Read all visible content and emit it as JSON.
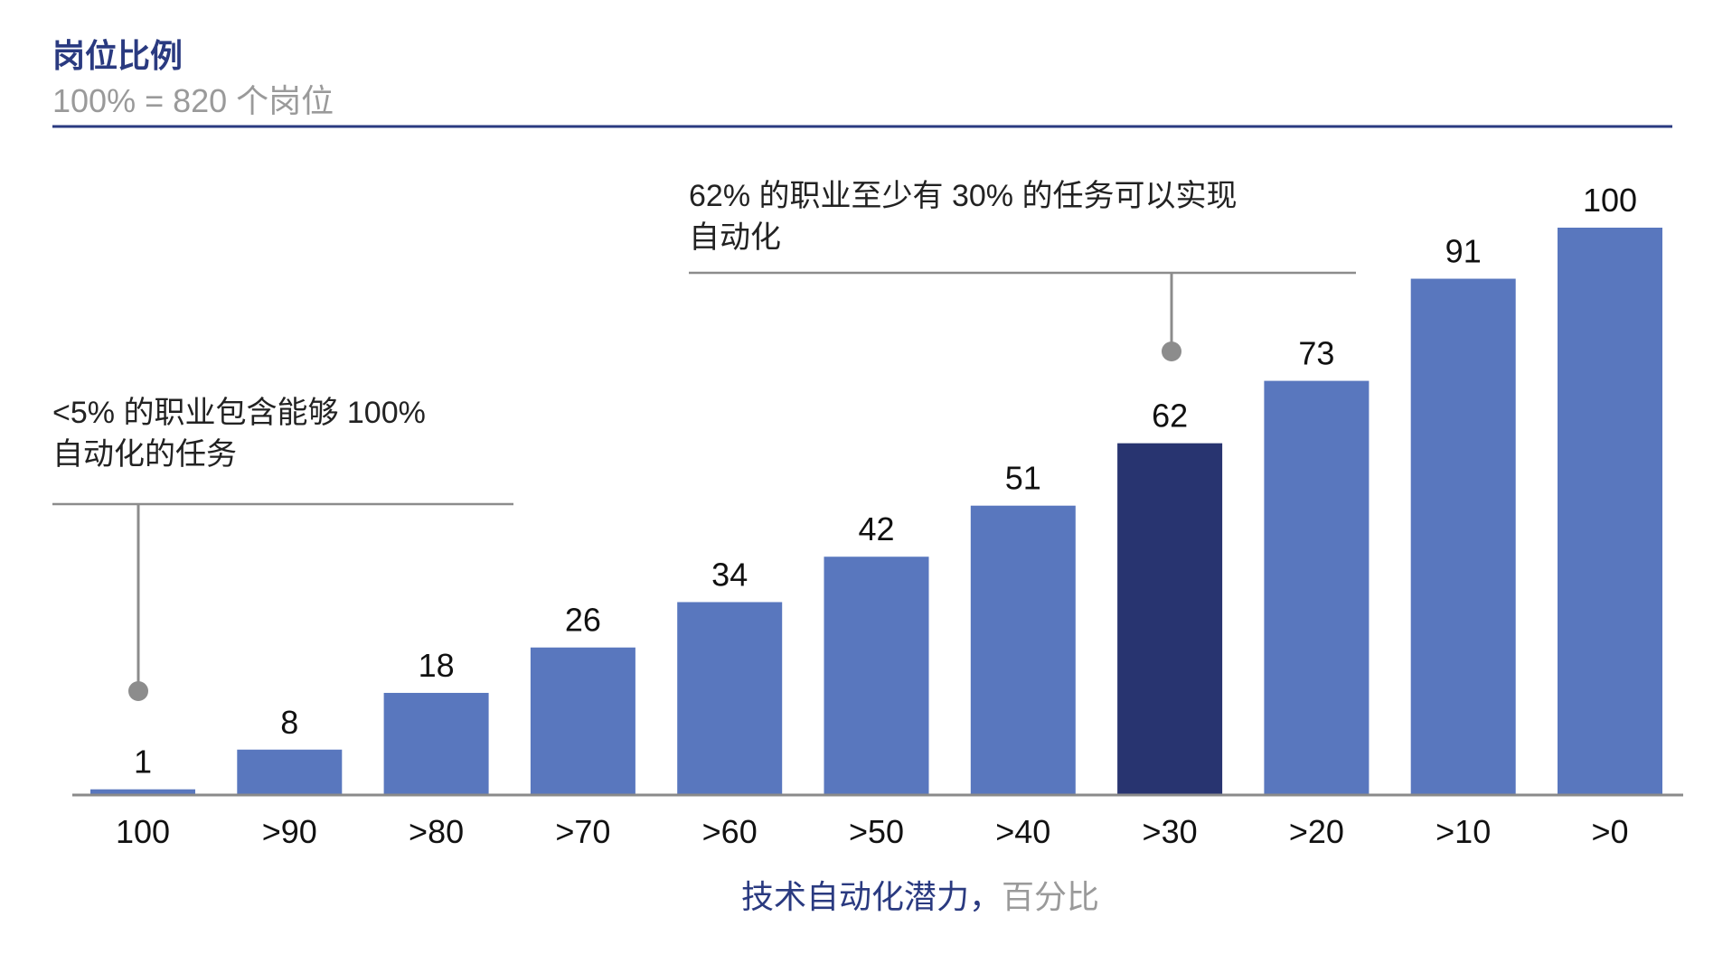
{
  "colors": {
    "title": "#2a3a80",
    "subtitle": "#9a9a9a",
    "bar": "#5977be",
    "bar_highlight": "#283470",
    "rule": "#2a3a80",
    "axis": "#8a8a8a",
    "annotation_line": "#8c8c8c",
    "xlabel_main": "#2a3a80",
    "xlabel_unit": "#9a9a9a"
  },
  "chart_data": {
    "type": "bar",
    "title": "岗位比例",
    "subtitle": "100% = 820 个岗位",
    "categories": [
      "100",
      ">90",
      ">80",
      ">70",
      ">60",
      ">50",
      ">40",
      ">30",
      ">20",
      ">10",
      ">0"
    ],
    "values": [
      1,
      8,
      18,
      26,
      34,
      42,
      51,
      62,
      73,
      91,
      100
    ],
    "highlight_category": ">30",
    "xlabel": "技术自动化潜力，",
    "xlabel_unit": "百分比",
    "ylim": [
      0,
      100
    ],
    "grid": false,
    "annotations": [
      {
        "text_lines": [
          "<5% 的职业包含能够 100%",
          "自动化的任务"
        ],
        "target_category": "100"
      },
      {
        "text_lines": [
          "62% 的职业至少有 30% 的任务可以实现",
          "自动化"
        ],
        "target_category": ">30"
      }
    ]
  }
}
